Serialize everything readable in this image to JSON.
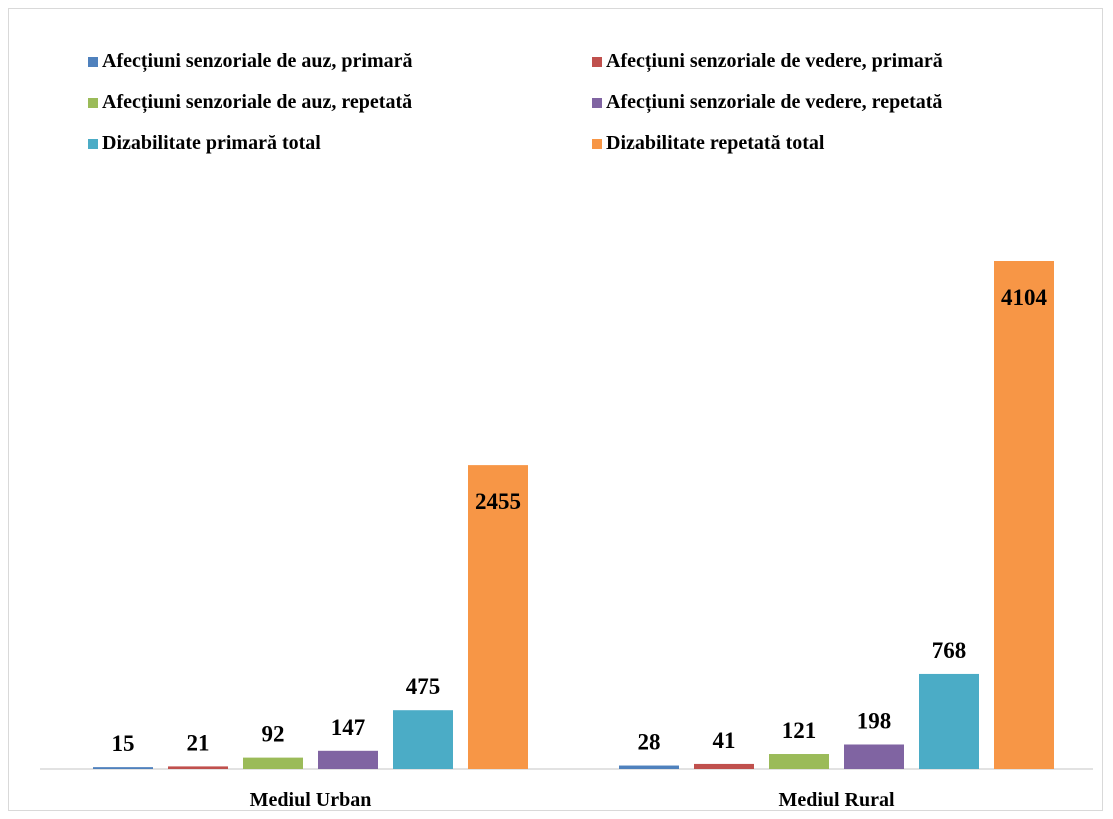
{
  "chart_data": {
    "type": "bar",
    "categories": [
      "Mediul Urban",
      "Mediul Rural"
    ],
    "series": [
      {
        "name": "Afecțiuni senzoriale de auz, primară",
        "color": "#4f81bd",
        "values": [
          15,
          28
        ]
      },
      {
        "name": "Afecțiuni senzoriale de vedere, primară",
        "color": "#c0504d",
        "values": [
          21,
          41
        ]
      },
      {
        "name": "Afecțiuni senzoriale de auz, repetată",
        "color": "#9bbb59",
        "values": [
          92,
          121
        ]
      },
      {
        "name": "Afecțiuni senzoriale de vedere, repetată",
        "color": "#8064a2",
        "values": [
          147,
          198
        ]
      },
      {
        "name": "Dizabilitate primară total",
        "color": "#4bacc6",
        "values": [
          475,
          768
        ]
      },
      {
        "name": "Dizabilitate repetată total",
        "color": "#f79646",
        "values": [
          2455,
          4104
        ]
      }
    ],
    "ylim": [
      0,
      4500
    ],
    "grid": false,
    "legend_position": "top",
    "data_labels": true
  }
}
